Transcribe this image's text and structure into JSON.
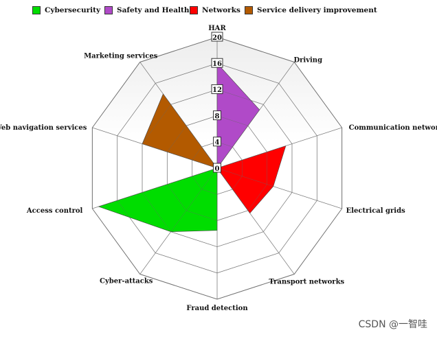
{
  "chart_data": {
    "type": "radar",
    "title": "HAR",
    "axes": [
      "HAR",
      "Driving",
      "Communication networks",
      "Electrical grids",
      "Transport networks",
      "Fraud detection",
      "Cyber-attacks",
      "Access control",
      "Web navigation services",
      "Marketing services"
    ],
    "rlim": [
      0,
      20
    ],
    "ticks": [
      "0",
      "4",
      "8",
      "12",
      "16",
      "20"
    ],
    "grid": true,
    "legend_position": "top",
    "series": [
      {
        "name": "Cybersecurity",
        "color": "#00dd00",
        "values": [
          0,
          0,
          0,
          0,
          0,
          9.5,
          12,
          19,
          0,
          0
        ]
      },
      {
        "name": "Safety and Health",
        "color": "#b04ac8",
        "values": [
          16,
          11,
          0,
          0,
          0,
          0,
          0,
          0,
          0,
          0
        ]
      },
      {
        "name": "Networks",
        "color": "#ff0000",
        "values": [
          0,
          0,
          11,
          9,
          8.5,
          0,
          0,
          0,
          0,
          0
        ]
      },
      {
        "name": "Service delivery improvement",
        "color": "#b35a00",
        "values": [
          0,
          0,
          0,
          0,
          0,
          0,
          0,
          0,
          12,
          14
        ]
      }
    ]
  },
  "watermark": "CSDN @一智哇"
}
